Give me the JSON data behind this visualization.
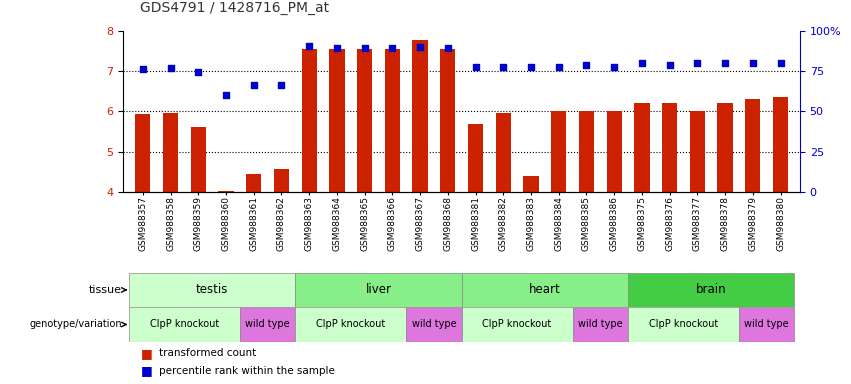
{
  "title": "GDS4791 / 1428716_PM_at",
  "samples": [
    "GSM988357",
    "GSM988358",
    "GSM988359",
    "GSM988360",
    "GSM988361",
    "GSM988362",
    "GSM988363",
    "GSM988364",
    "GSM988365",
    "GSM988366",
    "GSM988367",
    "GSM988368",
    "GSM988381",
    "GSM988382",
    "GSM988383",
    "GSM988384",
    "GSM988385",
    "GSM988386",
    "GSM988375",
    "GSM988376",
    "GSM988377",
    "GSM988378",
    "GSM988379",
    "GSM988380"
  ],
  "bar_values": [
    5.93,
    5.97,
    5.62,
    4.02,
    4.44,
    4.56,
    7.55,
    7.55,
    7.55,
    7.55,
    7.78,
    7.55,
    5.68,
    5.97,
    4.4,
    6.0,
    6.0,
    6.0,
    6.2,
    6.2,
    6.0,
    6.2,
    6.3,
    6.35
  ],
  "dot_values": [
    7.05,
    7.08,
    6.97,
    6.4,
    6.65,
    6.65,
    7.62,
    7.58,
    7.58,
    7.58,
    7.6,
    7.58,
    7.1,
    7.1,
    7.1,
    7.1,
    7.15,
    7.1,
    7.2,
    7.15,
    7.2,
    7.2,
    7.2,
    7.2
  ],
  "tissue_data": [
    {
      "label": "testis",
      "start": 0,
      "end": 5,
      "color": "#ccffcc"
    },
    {
      "label": "liver",
      "start": 6,
      "end": 11,
      "color": "#88ee88"
    },
    {
      "label": "heart",
      "start": 12,
      "end": 17,
      "color": "#88ee88"
    },
    {
      "label": "brain",
      "start": 18,
      "end": 23,
      "color": "#44cc44"
    }
  ],
  "geno_data": [
    {
      "label": "ClpP knockout",
      "start": 0,
      "end": 3,
      "color": "#ccffcc"
    },
    {
      "label": "wild type",
      "start": 4,
      "end": 5,
      "color": "#dd77dd"
    },
    {
      "label": "ClpP knockout",
      "start": 6,
      "end": 9,
      "color": "#ccffcc"
    },
    {
      "label": "wild type",
      "start": 10,
      "end": 11,
      "color": "#dd77dd"
    },
    {
      "label": "ClpP knockout",
      "start": 12,
      "end": 15,
      "color": "#ccffcc"
    },
    {
      "label": "wild type",
      "start": 16,
      "end": 17,
      "color": "#dd77dd"
    },
    {
      "label": "ClpP knockout",
      "start": 18,
      "end": 21,
      "color": "#ccffcc"
    },
    {
      "label": "wild type",
      "start": 22,
      "end": 23,
      "color": "#dd77dd"
    }
  ],
  "ylim": [
    4.0,
    8.0
  ],
  "yticks": [
    4,
    5,
    6,
    7,
    8
  ],
  "right_yticks": [
    0,
    25,
    50,
    75,
    100
  ],
  "right_yticklabels": [
    "0",
    "25",
    "50",
    "75",
    "100%"
  ],
  "bar_color": "#cc2200",
  "dot_color": "#0000cc",
  "legend_items": [
    "transformed count",
    "percentile rank within the sample"
  ]
}
